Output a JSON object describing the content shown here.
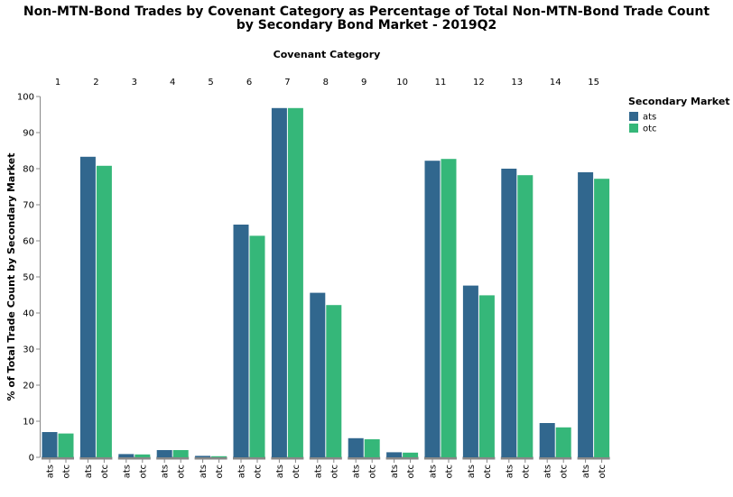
{
  "chart_data": {
    "type": "bar",
    "title": [
      "Non-MTN-Bond Trades by Covenant Category as Percentage of Total Non-MTN-Bond Trade Count",
      "by Secondary Bond Market - 2019Q2"
    ],
    "facet_title": "Covenant Category",
    "ylabel": "% of Total Trade Count by Secondary Market",
    "ylim": [
      0,
      100
    ],
    "yticks": [
      0,
      10,
      20,
      30,
      40,
      50,
      60,
      70,
      80,
      90,
      100
    ],
    "categories": [
      "1",
      "2",
      "3",
      "4",
      "5",
      "6",
      "7",
      "8",
      "9",
      "10",
      "11",
      "12",
      "13",
      "14",
      "15"
    ],
    "markets": [
      "ats",
      "otc"
    ],
    "colors": {
      "ats": "#31678e",
      "otc": "#35b779"
    },
    "series": [
      {
        "name": "ats",
        "values": [
          7.0,
          83.3,
          0.9,
          2.0,
          0.4,
          64.5,
          96.8,
          45.6,
          5.3,
          1.4,
          82.2,
          47.6,
          80.0,
          9.5,
          79.0
        ]
      },
      {
        "name": "otc",
        "values": [
          6.6,
          80.8,
          0.8,
          2.0,
          0.3,
          61.4,
          96.8,
          42.2,
          5.0,
          1.3,
          82.7,
          44.9,
          78.2,
          8.3,
          77.2
        ]
      }
    ],
    "legend": {
      "title": "Secondary Market",
      "position": "top-right",
      "items": [
        "ats",
        "otc"
      ]
    }
  }
}
